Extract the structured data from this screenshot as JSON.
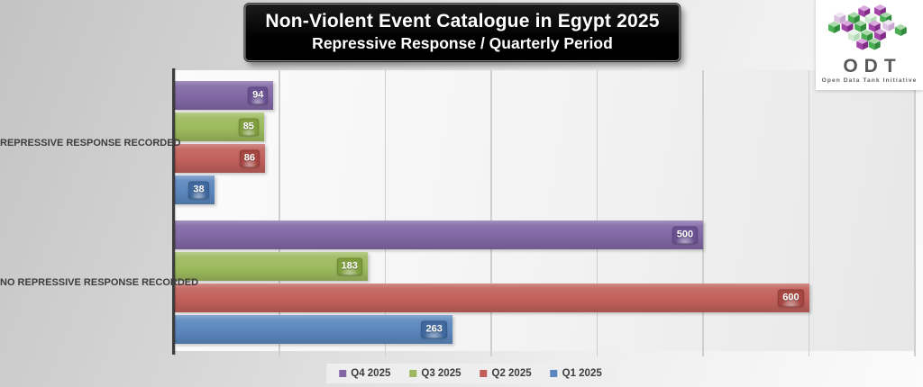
{
  "title": {
    "line1": "Non-Violent Event Catalogue in Egypt 2025",
    "line2": "Repressive Response / Quarterly Period"
  },
  "logo": {
    "name": "ODT",
    "tagline": "Open Data Tank Initiative",
    "cube_palettes": {
      "green": {
        "top": "#a9d8a8",
        "left": "#4aae53",
        "right": "#2f8a3c"
      },
      "purple": {
        "top": "#d9a6dd",
        "left": "#a344a8",
        "right": "#822a87"
      },
      "lavender": {
        "top": "#f1e6f3",
        "left": "#dcc4e1",
        "right": "#c7a6cf"
      },
      "mint": {
        "top": "#eaf6ea",
        "left": "#cfe9d0",
        "right": "#b3d9b6"
      }
    }
  },
  "chart_data": {
    "type": "bar",
    "orientation": "horizontal",
    "title": "Non-Violent Event Catalogue in Egypt 2025 — Repressive Response / Quarterly Period",
    "categories": [
      "REPRESSIVE RESPONSE RECORDED",
      "NO REPRESSIVE RESPONSE RECORDED"
    ],
    "series": [
      {
        "name": "Q4 2025",
        "color": "#8168a5",
        "label_color": "#6a5293",
        "values": [
          94,
          500
        ]
      },
      {
        "name": "Q3 2025",
        "color": "#9cba5e",
        "label_color": "#7f9f3e",
        "values": [
          85,
          183
        ]
      },
      {
        "name": "Q2 2025",
        "color": "#c1605b",
        "label_color": "#a64742",
        "values": [
          86,
          600
        ]
      },
      {
        "name": "Q1 2025",
        "color": "#5b87be",
        "label_color": "#40699f",
        "values": [
          38,
          263
        ]
      }
    ],
    "xlim": [
      0,
      700
    ],
    "gridline_interval": 100,
    "grid": true,
    "legend_position": "bottom",
    "xlabel": "",
    "ylabel": ""
  }
}
